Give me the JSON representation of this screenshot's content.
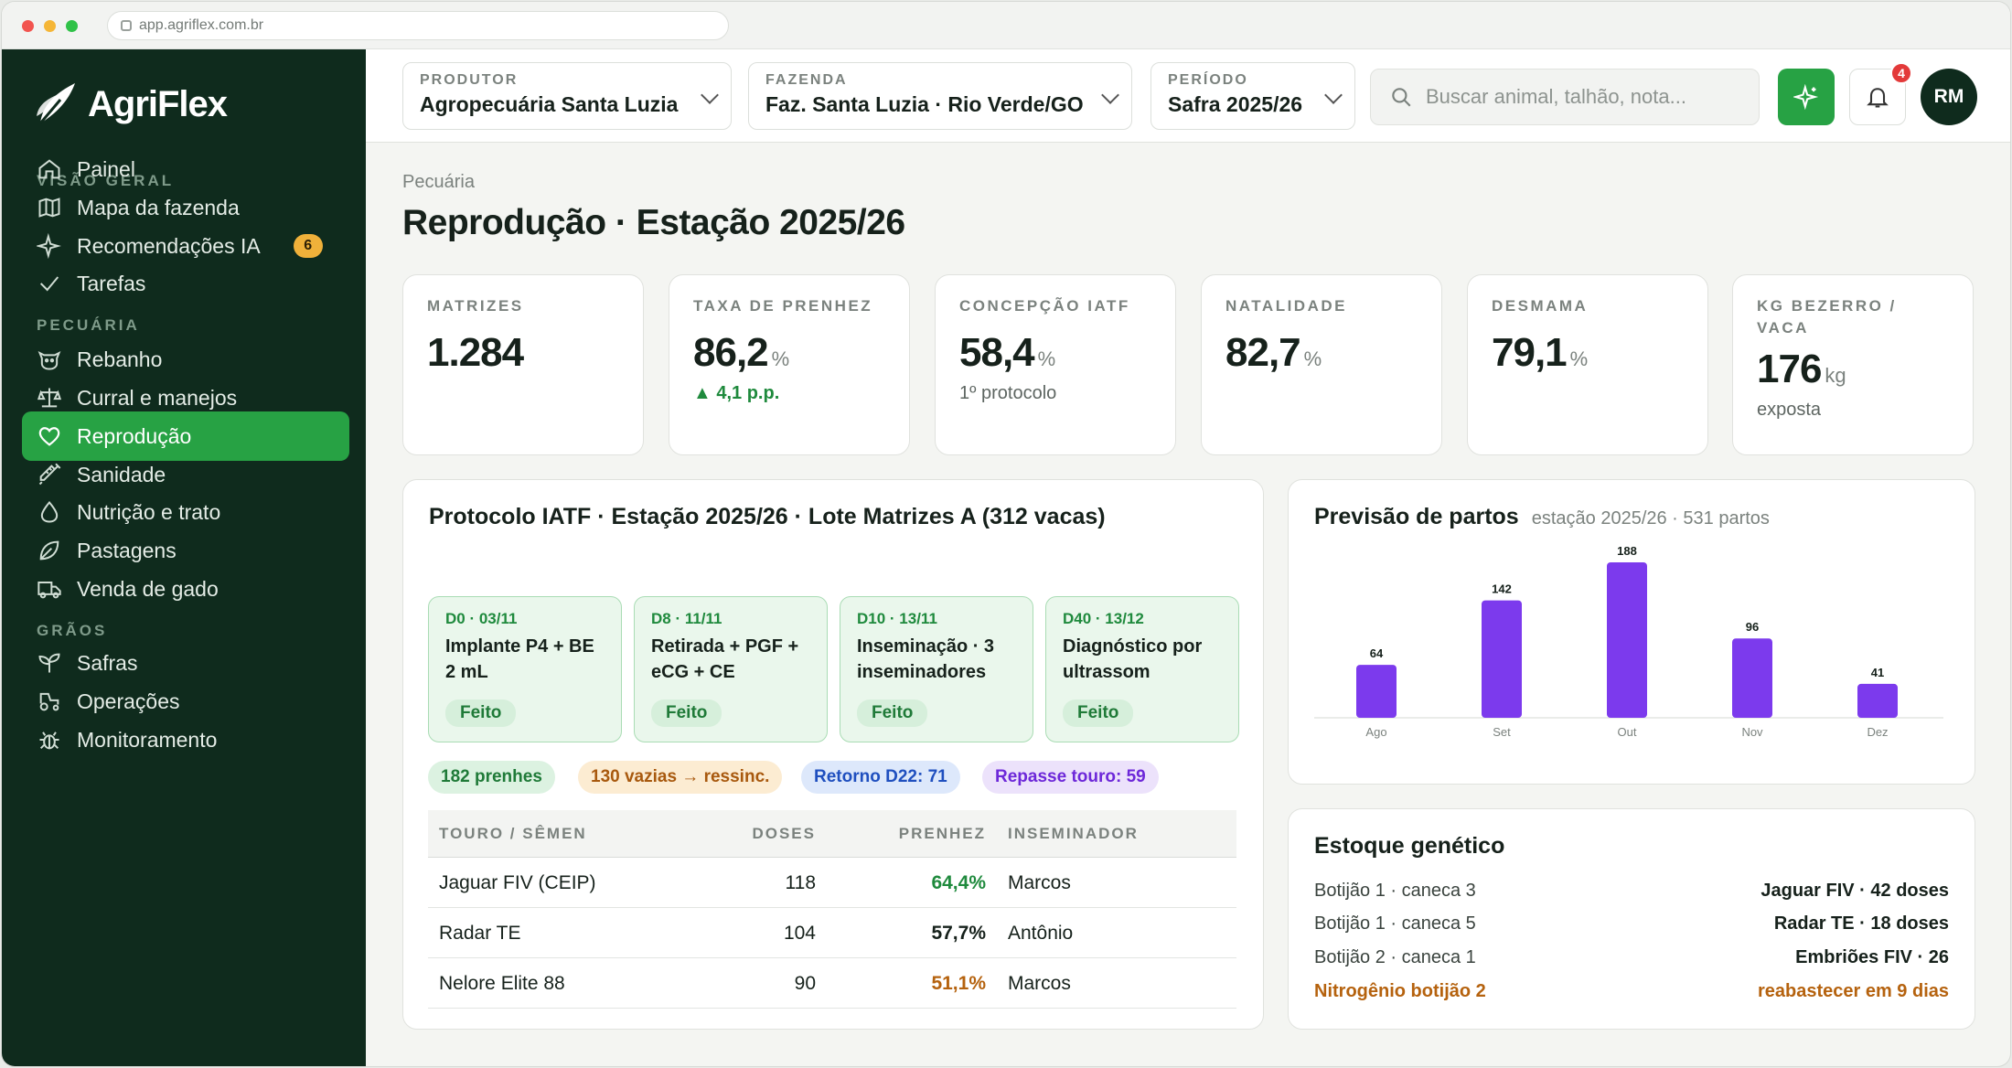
{
  "browser": {
    "url": "app.agriflex.com.br"
  },
  "brand": {
    "name": "AgriFlex",
    "accent": "#27a244",
    "sidebar_bg": "#0f2b1d"
  },
  "sidebar": {
    "sections": [
      "VISÃO GERAL",
      "PECUÁRIA",
      "GRÃOS"
    ],
    "items": [
      {
        "label": "Painel",
        "icon": "home-icon"
      },
      {
        "label": "Mapa da fazenda",
        "icon": "map-icon"
      },
      {
        "label": "Recomendações IA",
        "icon": "sparkle-icon",
        "badge": "6"
      },
      {
        "label": "Tarefas",
        "icon": "check-icon"
      },
      {
        "label": "Rebanho",
        "icon": "cow-icon"
      },
      {
        "label": "Curral e manejos",
        "icon": "scale-icon"
      },
      {
        "label": "Reprodução",
        "icon": "heart-icon",
        "active": true
      },
      {
        "label": "Sanidade",
        "icon": "syringe-icon"
      },
      {
        "label": "Nutrição e trato",
        "icon": "drop-icon"
      },
      {
        "label": "Pastagens",
        "icon": "leaf-icon"
      },
      {
        "label": "Venda de gado",
        "icon": "truck-icon"
      },
      {
        "label": "Safras",
        "icon": "sprout-icon"
      },
      {
        "label": "Operações",
        "icon": "tractor-icon"
      },
      {
        "label": "Monitoramento",
        "icon": "bug-icon"
      }
    ]
  },
  "header": {
    "produtor": {
      "label": "PRODUTOR",
      "value": "Agropecuária Santa Luzia"
    },
    "fazenda": {
      "label": "FAZENDA",
      "value": "Faz. Santa Luzia · Rio Verde/GO"
    },
    "periodo": {
      "label": "PERÍODO",
      "value": "Safra 2025/26"
    },
    "search_placeholder": "Buscar animal, talhão, nota...",
    "notifications": "4",
    "avatar": "RM"
  },
  "page": {
    "breadcrumb": "Pecuária",
    "title": "Reprodução · Estação 2025/26"
  },
  "kpis": [
    {
      "label": "MATRIZES",
      "value": "1.284",
      "unit": "",
      "sub": ""
    },
    {
      "label": "TAXA DE PRENHEZ",
      "value": "86,2",
      "unit": "%",
      "sub": "▲ 4,1 p.p."
    },
    {
      "label": "CONCEPÇÃO IATF",
      "value": "58,4",
      "unit": "%",
      "sub": "1º protocolo"
    },
    {
      "label": "NATALIDADE",
      "value": "82,7",
      "unit": "%",
      "sub": ""
    },
    {
      "label": "DESMAMA",
      "value": "79,1",
      "unit": "%",
      "sub": ""
    },
    {
      "label": "KG BEZERRO / VACA",
      "value": "176",
      "unit": "kg",
      "sub": "exposta"
    }
  ],
  "protocol": {
    "title": "Protocolo IATF · Estação 2025/26 · Lote Matrizes A (312 vacas)",
    "steps": [
      {
        "day": "D0 · 03/11",
        "text": "Implante P4 + BE 2 mL",
        "status": "Feito"
      },
      {
        "day": "D8 · 11/11",
        "text": "Retirada + PGF + eCG + CE",
        "status": "Feito"
      },
      {
        "day": "D10 · 13/11",
        "text": "Inseminação · 3 inseminadores",
        "status": "Feito"
      },
      {
        "day": "D40 · 13/12",
        "text": "Diagnóstico por ultrassom",
        "status": "Feito"
      }
    ],
    "chips": [
      "182 prenhes",
      "130 vazias → ressinc.",
      "Retorno D22: 71",
      "Repasse touro: 59"
    ],
    "table": {
      "headers": [
        "TOURO / SÊMEN",
        "DOSES",
        "PRENHEZ",
        "INSEMINADOR"
      ],
      "rows": [
        {
          "touro": "Jaguar FIV (CEIP)",
          "doses": "118",
          "prenhez": "64,4%",
          "insem": "Marcos",
          "color": "#1f8a3d"
        },
        {
          "touro": "Radar TE",
          "doses": "104",
          "prenhez": "57,7%",
          "insem": "Antônio",
          "color": "#16211b"
        },
        {
          "touro": "Nelore Elite 88",
          "doses": "90",
          "prenhez": "51,1%",
          "insem": "Marcos",
          "color": "#b5620e"
        }
      ]
    }
  },
  "partos": {
    "title": "Previsão de partos",
    "subtitle": "estação 2025/26 · 531 partos"
  },
  "chart_data": {
    "type": "bar",
    "title": "Previsão de partos",
    "categories": [
      "Ago",
      "Set",
      "Out",
      "Nov",
      "Dez"
    ],
    "values": [
      64,
      142,
      188,
      96,
      41
    ],
    "color": "#7c3aed",
    "grid": false
  },
  "estoque": {
    "title": "Estoque genético",
    "rows": [
      {
        "left": "Botijão 1 · caneca 3",
        "right": "Jaguar FIV · 42 doses"
      },
      {
        "left": "Botijão 1 · caneca 5",
        "right": "Radar TE · 18 doses"
      },
      {
        "left": "Botijão 2 · caneca 1",
        "right": "Embriões FIV · 26"
      },
      {
        "left": "Nitrogênio botijão 2",
        "right": "reabastecer em 9 dias",
        "alert": true
      }
    ]
  }
}
